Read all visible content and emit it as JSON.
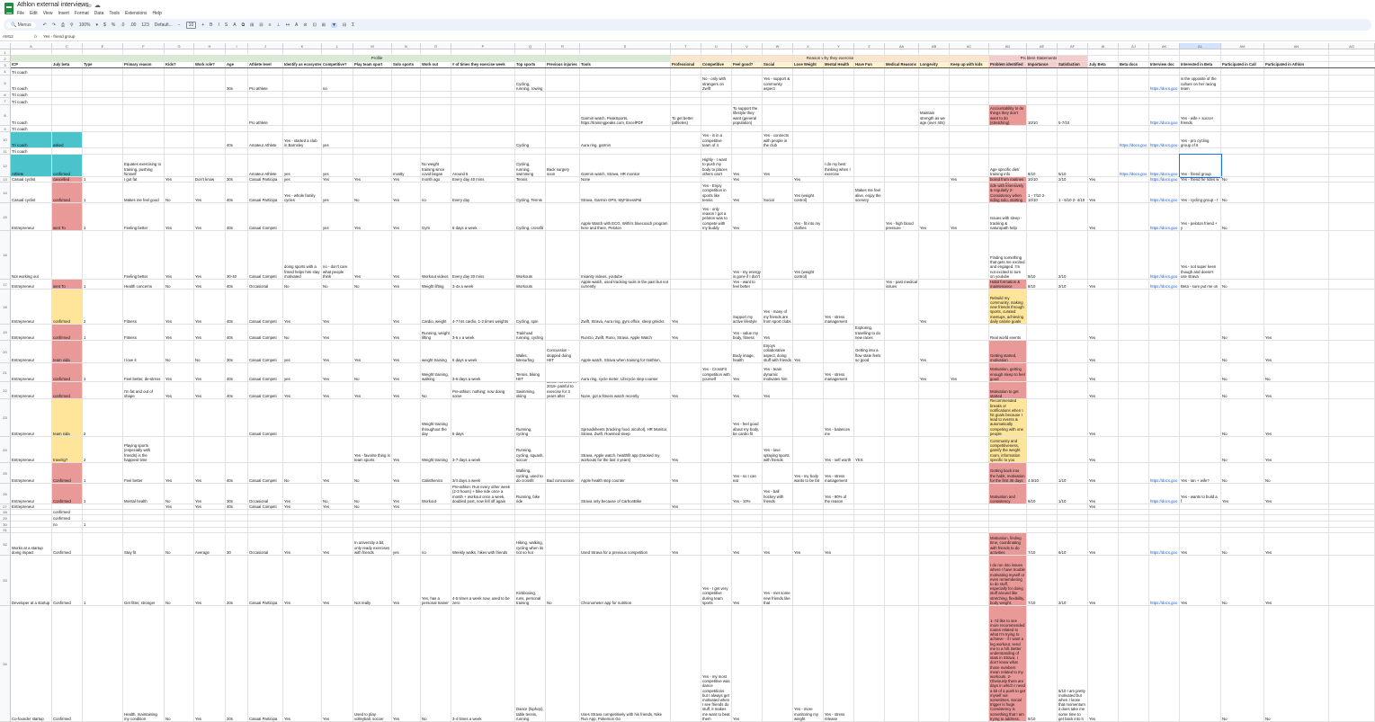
{
  "doc": {
    "title": "Athlon external interviews"
  },
  "menu": [
    "File",
    "Edit",
    "View",
    "Insert",
    "Format",
    "Data",
    "Tools",
    "Extensions",
    "Help"
  ],
  "toolbar": {
    "search": "Menus",
    "zoom": "100%",
    "font": "Default...",
    "font_size": "10",
    "items": [
      "↶",
      "↷",
      "⎙",
      "⚲",
      "100%",
      "▾",
      "$",
      "%",
      ".0",
      ".00",
      "123",
      "Default...",
      "−",
      "10",
      "+",
      "B",
      "I",
      "S",
      "A",
      "⧉",
      "⊞",
      "⊟",
      "≡",
      "⊥",
      "↦",
      "A",
      "⊘",
      "⊡",
      "⊞",
      "▼",
      "⊟",
      "Σ"
    ]
  },
  "formula": {
    "cell_ref": "AM12",
    "value": "Yes - friend group"
  },
  "colors": {
    "teal": "#4bc3cb",
    "red": "#ea9999",
    "yellow": "#ffe599",
    "green_band": "#d9ead3",
    "orange_band": "#fce5cd",
    "pink_band": "#f4cccc",
    "header_yellow": "#fff2cc"
  },
  "column_letters": [
    "A",
    "C",
    "E",
    "F",
    "G",
    "H",
    "I",
    "J",
    "K",
    "L",
    "M",
    "N",
    "O",
    "P",
    "Q",
    "R",
    "S",
    "T",
    "U",
    "V",
    "W",
    "X",
    "Y",
    "Z",
    "AA",
    "AB",
    "AC",
    "AD",
    "AE",
    "AF",
    "AI",
    "AJ",
    "AK",
    "AL",
    "AM",
    "AN",
    "AO",
    "AP",
    "AQ"
  ],
  "bands": {
    "profile": "Profile",
    "reasons": "Reason why they exercise",
    "problems": "Problem Statements"
  },
  "headers": [
    "ICP",
    "July beta",
    "Type",
    "Primary reason",
    "Kids?",
    "Work role?",
    "Age",
    "Athlete level",
    "Identify as ecosystem",
    "Competitive?",
    "Play team sport",
    "Solo sports",
    "Work out",
    "# of times they exercise week",
    "Top sports",
    "Previous injuries",
    "Tools",
    "Professional",
    "Competitive",
    "Feel good?",
    "Social",
    "Lose Weight",
    "Mental Health",
    "Have Fun",
    "Medical Reasons",
    "Longevity",
    "Keep up with kids",
    "Problem identified",
    "Importance",
    "Satisfaction",
    "July Beta",
    "Beta docs",
    "Interview doc",
    "Interested in Beta",
    "Participated in Call",
    "Participated in Athlon"
  ],
  "rows": [
    {
      "n": "1",
      "A": "",
      "C": ""
    },
    {
      "n": "2"
    },
    {
      "n": "3"
    },
    {
      "n": "4",
      "A": "Tri coach"
    },
    {
      "n": "5",
      "A": "Tri coach",
      "G": "",
      "I": "30s",
      "J": "Pro athlete",
      "L": "no",
      "Q": "Cycling, running, rowing",
      "U": "No - only with strangers on Zwift",
      "W": "Yes - support & community aspect",
      "AL": "https://docs.goo",
      "AM": "Hello no - competition is the opposite of the culture on her racing team"
    },
    {
      "n": "6",
      "A": "Tri coach"
    },
    {
      "n": "7",
      "A": "Tri coach"
    },
    {
      "n": "8",
      "A": "Tri coach",
      "J": "Pro athlete",
      "S": "Garmin watch, PeakSports, https://trainingpeaks.com, ExcelPDF",
      "T": "To get better (athletes)",
      "V": "To support the lifestyle they want (general population)",
      "AB": "Maintain strength as we age (over 40s)",
      "AD": "Accountability to do things they don't want to do (stretching)",
      "AE": "10/10",
      "AF": "5-7/10",
      "AL": "https://docs.goo",
      "AM": "Yes - wife + soccer friends"
    },
    {
      "n": "9",
      "A": "Tri coach"
    },
    {
      "n": "10",
      "A": "Tri coach",
      "C": "asked",
      "I": "40s",
      "J": "Amateur Athlete",
      "K": "Yes - started a club in Barnsley",
      "L": "yes",
      "Q": "Cycling",
      "S": "Aura ring, garmin",
      "U": "Yes - is in a competitive team of 4",
      "W": "Yes - connects with people in the club",
      "AK": "https://docs.goo",
      "AL": "https://docs.goo",
      "AM": "Yes - pro cycling group of 6"
    },
    {
      "n": "11",
      "A": "Tri coach"
    },
    {
      "n": "12",
      "A": "Athlete",
      "C": "confirmed",
      "F": "Equates exercising to training, pushing himself",
      "J": "Amateur Athlete",
      "K": "yes",
      "L": "yes",
      "N": "mostly",
      "O": "No weight training since covid began",
      "P": "Around 6",
      "Q": "Cycling, running, swimming",
      "R": "Back surgery soon",
      "S": "Garmin watch, Strava, HR monitor",
      "U": "Highly - I want to push my body to places others can't",
      "V": "Yes",
      "W": "Yes",
      "Y": "I do my best thinking when I exercise",
      "AD": "Age specific diet/ training info",
      "AE": "8/10",
      "AF": "5/10",
      "AK": "https://docs.goo",
      "AL": "https://docs.goo",
      "AM": "Yes - friend group"
    },
    {
      "n": "13",
      "A": "Casual cyclist",
      "C": "cancelled",
      "E": "1",
      "F": "I got fat",
      "G": "Yes",
      "H": "Don't know",
      "I": "30s",
      "J": "Casual Participa",
      "K": "yes",
      "L": "Yes",
      "M": "Yes",
      "N": "Yes",
      "O": "HIIT started again about a month ago",
      "P": "Every day 40 mins",
      "Q": "HIIT, Cycling, Tennis",
      "S": "None",
      "V": "Yes",
      "X": "Yes",
      "AC": "Yes",
      "AD": "Consistency/ motivation, getting bored from routines",
      "AE": "10/10",
      "AF": "2/10",
      "AI": "Yes",
      "AL": "https://docs.goo",
      "AM": "Yes - friend he rides w",
      "AN": "No"
    },
    {
      "n": "14",
      "A": "Casual cyclist",
      "C": "confirmed",
      "E": "1",
      "F": "Makes me feel good",
      "G": "No",
      "H": "Yes",
      "I": "40s",
      "J": "Casual Participa",
      "K": "Yes - whole family cycles",
      "L": "yes",
      "M": "No",
      "N": "Yes",
      "O": "no",
      "P": "Every day",
      "Q": "Cycling, Tennis",
      "S": "Strava, Garmin GPS, MyFitnessPal",
      "U": "Yes - Enjoy competition in sports like tennis",
      "V": "Yes",
      "W": "Social",
      "X": "Yes (weight control)",
      "Z": "Makes me feel alive, enjoy the scenery",
      "AD": "1- Finding people to ride with intensively & regularly 2- Consistency when riding solo, starting",
      "AE": "1 - 7/10 2- 10/10",
      "AF": "1 - 6/10 2- 4/10",
      "AI": "Yes",
      "AL": "https://docs.goo",
      "AM": "Yes - cycling group - t",
      "AN": "No"
    },
    {
      "n": "15",
      "A": "Entrepreneur",
      "C": "sent To",
      "E": "1",
      "F": "Feeling better",
      "G": "Yes",
      "H": "Yes",
      "I": "40s",
      "J": "Casual Competi",
      "L": "yes",
      "M": "Yes",
      "N": "Yes",
      "O": "Gym",
      "P": "6 days a week",
      "Q": "Cycling, crossfit",
      "S": "Apple Watch with ECG, Withi's bluecoach program here and there, Peloton",
      "U": "Yes - only reason I got a peloton was to compete with my buddy",
      "V": "Yes",
      "X": "Yes - fit into my clothes",
      "AA": "Yes - high blood pressure",
      "AB": "Yes",
      "AC": "Yes",
      "AD": "Issues with sleep - tracking & naturopath help",
      "AI": "Yes",
      "AL": "https://docs.goo",
      "AM": "Yes - peloton friend + y",
      "AN": "No"
    },
    {
      "n": "16",
      "A": "Not working out",
      "F": "Feeling better",
      "G": "Yes",
      "H": "Yes",
      "I": "30-40",
      "J": "Casual Competi",
      "K": "doing sports with a friend helps him stay motivated",
      "L": "no - don't care what people think",
      "M": "Yes",
      "N": "Yes",
      "O": "Workout videos",
      "P": "Every day 30 mins",
      "Q": "Workouts",
      "S": "Insanity videos, youtube",
      "V": "Yes - my energy is gone if I don't",
      "X": "Yes (weight control)",
      "AD": "Finding something that gets me excited and engaged. I'm not excited to turn on youtube",
      "AE": "8/10",
      "AF": "2/10",
      "AL": "https://docs.goo",
      "AM": "Yes - not super keen though and doesn't use strava"
    },
    {
      "n": "17",
      "A": "Entrepreneur",
      "C": "sent To",
      "E": "1",
      "F": "Health concerns",
      "G": "No",
      "H": "Yes",
      "I": "40s",
      "J": "Occasional",
      "K": "No",
      "L": "No",
      "M": "No",
      "N": "Yes",
      "O": "Weight lifting",
      "P": "3-4x a week",
      "Q": "Workouts",
      "S": "Apple watch, used tracking tools in the past but not currently",
      "V": "Yes - want to feel better",
      "AA": "Yes - past medical issues",
      "AD": "Habit formation & maintenance",
      "AE": "8/10",
      "AF": "2/10",
      "AI": "Yes",
      "AL": "https://docs.goo",
      "AM": "Beta - sure put me on",
      "AN": "No"
    },
    {
      "n": "18",
      "A": "Entrepreneur",
      "C": "confirmed",
      "E": "2",
      "F": "Fitness",
      "G": "Yes",
      "H": "Yes",
      "I": "40s",
      "J": "Casual Competi",
      "K": "Yes",
      "L": "Yes",
      "N": "Yes",
      "O": "Cardio, weight",
      "P": "4-7 hrs cardio, 1-2 times weights",
      "Q": "Cycling, spin",
      "S": "Zwift, Strava, Aura ring, gym office, sleep gmicks",
      "T": "Yes",
      "V": "Support my active lifestyle",
      "W": "Yes - many of my friends are from sport clubs",
      "Y": "Yes - stress management",
      "AB": "Yes",
      "AD": "Rebuild my community, making new friends through sports, curated meetups, achieving daily calorie goals"
    },
    {
      "n": "19",
      "A": "Entrepreneur",
      "C": "confirmed",
      "E": "1",
      "F": "Fitness",
      "G": "Yes",
      "H": "Yes",
      "I": "40s",
      "J": "Casual Competi",
      "K": "No",
      "L": "Yes",
      "N": "Yes",
      "O": "Running, weight lifting",
      "P": "3-6 x a week",
      "Q": "Trail/road running, cycling",
      "S": "RunGo, Zwift, Runo, Strava, Apple Watch",
      "T": "Yes",
      "V": "Yes - value my body, fitness",
      "W": "Yes",
      "Z": "Exploring, travelling to do new races",
      "AD": "Real world events",
      "AI": "Yes",
      "AN": "No",
      "AP": "Yes"
    },
    {
      "n": "20",
      "A": "Entrepreneur",
      "C": "team sida",
      "F": "I love it",
      "G": "No",
      "H": "No",
      "I": "30s",
      "J": "Casual Competi",
      "K": "yes",
      "L": "Yes",
      "M": "Yes",
      "N": "Yes",
      "O": "weight training",
      "P": "6 days a week",
      "Q": "Walks, kitesurfing",
      "R": "Concussion - stopped doing HIIT",
      "S": "Apple watch, Strava when training for triathlon,",
      "V": "Body image, health",
      "W": "Enjoys collaborative aspect, doing stuff with friends",
      "X": "Yes",
      "Z": "Getting into a flow state feels so good",
      "AB": "Yes",
      "AD": "Getting started, motivation",
      "AI": "Yes",
      "AN": "No",
      "AP": "Yes"
    },
    {
      "n": "21",
      "A": "Entrepreneur",
      "C": "confirmed",
      "E": "1",
      "F": "Feel better, de-stress",
      "G": "Yes",
      "H": "Yes",
      "I": "40s",
      "J": "Casual Competi",
      "K": "yes",
      "L": "Yes",
      "M": "No",
      "N": "Yes",
      "O": "Weight training, walking",
      "P": "3-6 days a week",
      "Q": "Tennis, biking HIIT",
      "S": "Aura ring, cycle meter, Lifecycle step counter",
      "U": "Yes - CrossFit competition with yourself",
      "V": "Yes",
      "W": "Yes - team dynamic motivates him",
      "Y": "Yes - stress management",
      "AB": "Yes",
      "AC": "Yes",
      "AD": "Motivation, getting enough sleep to feel good",
      "AI": "Yes",
      "AN": "No",
      "AP": "No"
    },
    {
      "n": "22",
      "A": "Entrepreneur",
      "C": "confirmed",
      "F": "I'm fat and out of shape",
      "G": "Yes",
      "H": "Yes",
      "I": "40s",
      "J": "Casual Competi",
      "K": "Yes",
      "L": "Yes",
      "M": "Yes",
      "N": "Yes",
      "O": "No",
      "P": "Pre-athlon: nothing; now doing some",
      "Q": "Swimming, skiing",
      "R": "Broke his neck in 2019- painful to exercise for 3 years after",
      "S": "None, got a fitness watch recently",
      "T": "Yes",
      "V": "Yes",
      "W": "Yes",
      "AD": "Motivation to get started",
      "AI": "Yes",
      "AN": "No",
      "AP": "Yes"
    },
    {
      "n": "23",
      "A": "Entrepreneur",
      "C": "team sida",
      "E": "2",
      "J": "Casual Competi",
      "O": "Weight training throughout the day",
      "P": "5 days",
      "Q": "Running, cycling",
      "S": "Spreadsheets (tracking food, alcohol), HR Monitor, Strava, Zwift, Rowmed sleep",
      "V": "Yes - feel good about my body, be cardio fit",
      "Y": "Yes - balances me",
      "AD": "Recommended breaks or notifications when I hit goals because I lead to events & automatically competing with one people",
      "AI": "Yes",
      "AN": "No",
      "AP": "Yes"
    },
    {
      "n": "24",
      "A": "Entrepreneur",
      "C": "travelig?",
      "E": "2",
      "F": "Playing sports (especially with friends) is the happiest time",
      "M": "Yes - favorite thing is team sports",
      "N": "Yes",
      "O": "Weight training",
      "P": "3-7 days a week",
      "Q": "Running, cycling, squash, soccer",
      "S": "Strava, Apple watch, healthfit app (tracked my workouts for the last 4 years)",
      "T": "Yes",
      "W": "Yes - love splaying sports with friends",
      "Y": "Yes - self worth",
      "Z": "YES",
      "AD": "Community and competitiveness, gamify the weight room, information specific to you",
      "AI": "Yes",
      "AN": "No",
      "AP": "Yes"
    },
    {
      "n": "25",
      "A": "Entrepreneur",
      "C": "Confirmed",
      "E": "1",
      "F": "Feel better",
      "G": "Yes",
      "H": "Yes",
      "I": "40s",
      "J": "Casual Competi",
      "K": "No",
      "L": "Yes",
      "M": "No",
      "N": "Yes",
      "O": "Calisthenics",
      "P": "3/4 days a week",
      "Q": "Walking, cycling, used to do crossfit",
      "R": "Bad concussion",
      "S": "Apple health step counter",
      "T": "Yes",
      "V": "Yes - so I can eat",
      "X": "Yes - my body wants to be fat",
      "Y": "Yes - stress management",
      "AD": "Getting back into the habit, motivation for the first 30 days",
      "AE": "4.5/10",
      "AF": "1/10",
      "AI": "Yes",
      "AL": "https://docs.goo",
      "AM": "Yes - Ian + wife?",
      "AN": "No",
      "AP": "No"
    },
    {
      "n": "26",
      "A": "Entrepreneur",
      "C": "Confirmed",
      "E": "1",
      "F": "Mental health",
      "G": "No",
      "H": "Yes",
      "I": "30s",
      "J": "Occasional",
      "K": "Yes",
      "L": "No,",
      "M": "No",
      "N": "Yes",
      "O": "Workout",
      "P": "Pre-athlon: Run every other week (2-3 hours) + bike ride once a month + workout once a week, doubled post, now fell off again",
      "Q": "Running, bike ride",
      "S": "Strava only because of CarbonBike",
      "V": "Yes - 10%",
      "W": "Yes - ball hockey with friends",
      "Y": "Yes - 90% of the reason",
      "AD": "Motivation and consistency",
      "AE": "8/10",
      "AF": "1/10",
      "AI": "Yes",
      "AL": "https://docs.goo",
      "AM": "Yes - wants to build a f",
      "AN": "Yes",
      "AP": "Yes"
    },
    {
      "n": "27",
      "A": "Entrepreneur",
      "G": "Yes",
      "H": "Yes",
      "I": "40s",
      "J": "Casual Competi",
      "K": "Yes",
      "L": "Yes",
      "M": "No",
      "N": "Yes",
      "T": "Yes",
      "AI": "Yes"
    },
    {
      "n": "28",
      "C": "confirmed"
    },
    {
      "n": "29",
      "C": "confirmed"
    },
    {
      "n": "30",
      "C": "no",
      "E": "1"
    },
    {
      "n": "31"
    },
    {
      "n": "32",
      "A": "Works at a startup doing impact",
      "C": "Confirmed",
      "F": "Stay fit",
      "G": "No",
      "H": "Average",
      "I": "30",
      "J": "Occasional",
      "K": "Yes",
      "L": "Yes",
      "M": "In university a bit, only ready exercises with friends",
      "N": "yes",
      "O": "no",
      "P": "Weekly walks, hikes with friends",
      "Q": "Hiking, walking, cycling when its not so hot",
      "S": "Used Strava for a previous competition",
      "T": "Yes",
      "V": "Yes",
      "W": "Yes",
      "X": "Yes",
      "Y": "Yes",
      "AD": "Motivation, finding time, coordinating with friends to do activities",
      "AE": "7/10",
      "AF": "6/10",
      "AI": "Yes",
      "AL": "https://docs.goo",
      "AM": "Yes",
      "AN": "No",
      "AP": "Yes"
    },
    {
      "n": "33",
      "A": "Developer at a startup",
      "C": "Confirmed",
      "E": "1",
      "F": "Get fitter, stronger",
      "G": "No",
      "H": "Yes",
      "I": "20s",
      "J": "Casual Participa",
      "K": "Yes",
      "L": "Yes",
      "M": "Not really",
      "N": "Yes",
      "O": "Yes, has a personal trainer",
      "P": "4-5 times a week now, used to be zero",
      "Q": "Kickboxing, runs, personal training",
      "R": "No",
      "S": "Chronometer app for nutrition",
      "U": "Yes - I get very competitive during team sports",
      "V": "Yes",
      "W": "Yes - met some new friends like that",
      "AD": "I do run into issues where I have trouble motivating myself or even remembering to do stuff, especially for doing stuff around like stretching, flexibility, body weight.",
      "AE": "7/10",
      "AF": "2/10",
      "AI": "Yes",
      "AL": "https://docs.goo",
      "AM": "Yes",
      "AN": "No",
      "AP": "Yes"
    },
    {
      "n": "34",
      "A": "Co-founder startup",
      "C": "Confirmed",
      "F": "Health, maintaining my condition",
      "G": "No",
      "H": "Yes",
      "I": "20s",
      "J": "Casual Participa",
      "K": "Yes",
      "L": "Yes",
      "M": "Used to play volleyball, soccer",
      "N": "Yes",
      "O": "No",
      "P": "3-4 times a week",
      "Q": "Dance (hiphop), table tennis, running",
      "S": "Uses Strava competitively with his friends, Nike Run App, Pokemon Go",
      "U": "Yes - my most competitive was dance competitions but I always get motivated when I see friends do stuff, it makes me want to beat them",
      "V": "Yes",
      "X": "Yes - more monitoring my weight",
      "Y": "Yes - stress release",
      "AD": "1- I'd like to see more recommended routes related to what I'm trying to achieve - if I want a leg workout, send me to a hill. Better understanding of stats in Strava, I don't know what those numbers mean related to my workouts. 2- Obviously there are days in which I need a bit of a push to get myself out sometimes. Social trigger is huge. Consistency is something that I am trying to address.",
      "AE": "8/10",
      "AF": "5/10 I am pretty motivated but when I loose that momentum it does take me some time to get back into it",
      "AI": "Yes",
      "AN": "No",
      "AP": "No"
    }
  ]
}
